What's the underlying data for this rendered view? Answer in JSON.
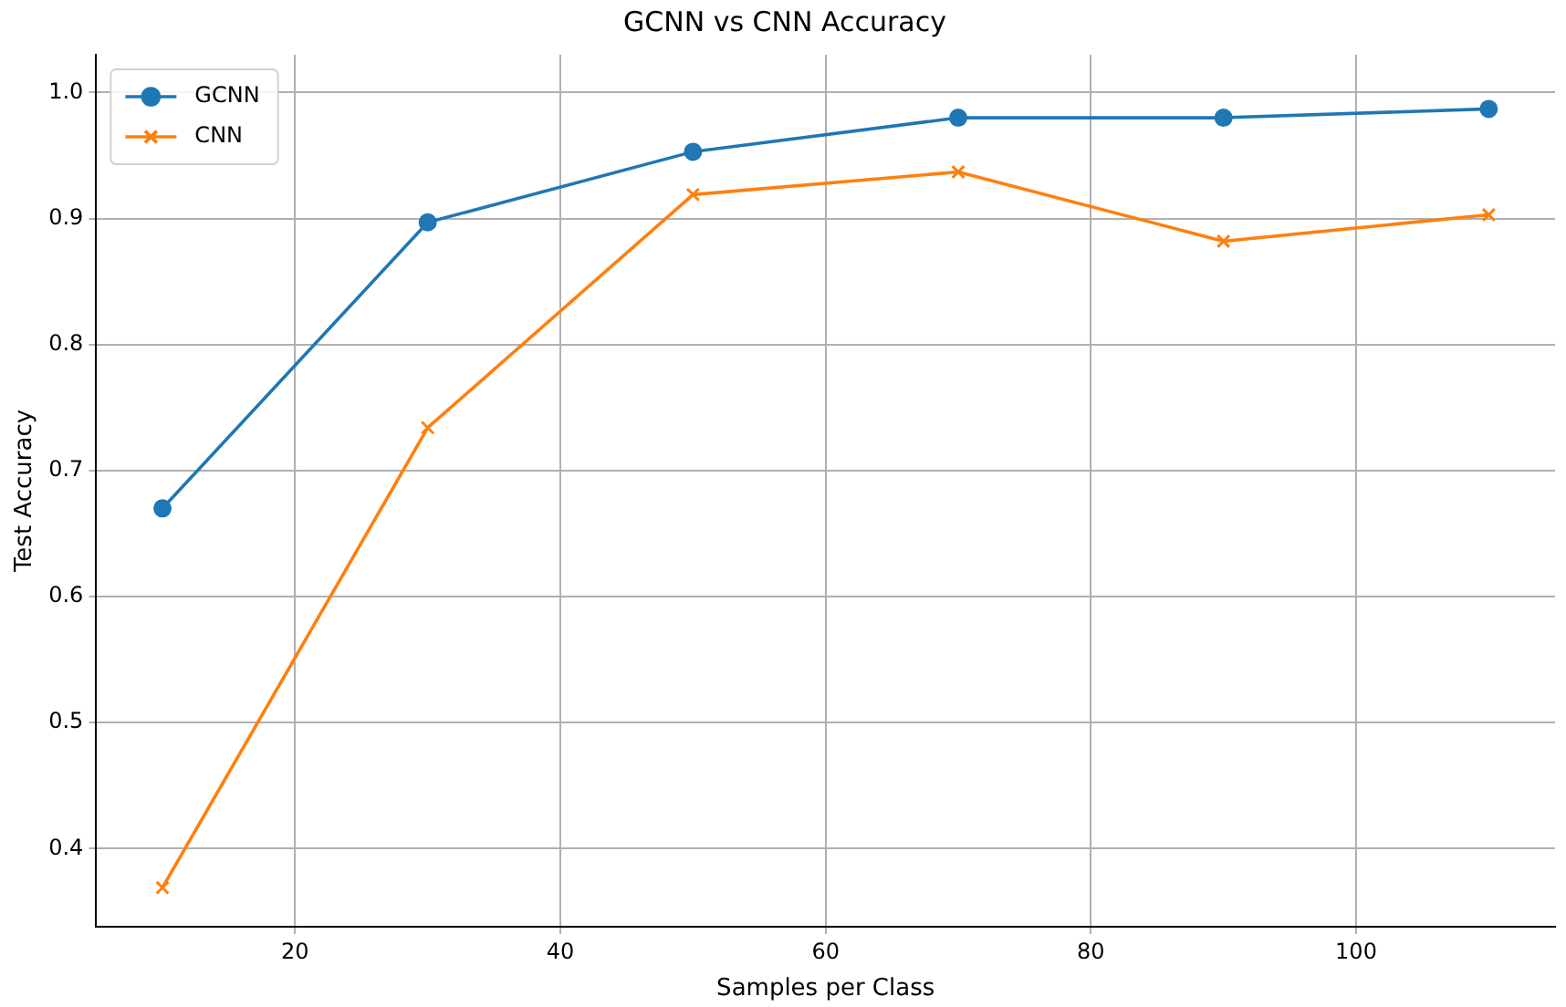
{
  "chart_data": {
    "type": "line",
    "title": "GCNN vs CNN Accuracy",
    "xlabel": "Samples per Class",
    "ylabel": "Test Accuracy",
    "x": [
      10,
      30,
      50,
      70,
      90,
      110
    ],
    "series": [
      {
        "name": "GCNN",
        "color": "#1f77b4",
        "marker": "circle",
        "values": [
          0.67,
          0.897,
          0.953,
          0.98,
          0.98,
          0.987
        ]
      },
      {
        "name": "CNN",
        "color": "#ff7f0e",
        "marker": "cross",
        "values": [
          0.369,
          0.734,
          0.919,
          0.937,
          0.882,
          0.903
        ]
      }
    ],
    "xlim": [
      5,
      115
    ],
    "xticks": [
      20,
      40,
      60,
      80,
      100
    ],
    "ylim": [
      0.338,
      1.03
    ],
    "yticks": [
      0.4,
      0.5,
      0.6,
      0.7,
      0.8,
      0.9,
      {
        "value": 1,
        "label": "1.0"
      }
    ],
    "grid": true,
    "legend": "top left",
    "line_style": "solid"
  }
}
